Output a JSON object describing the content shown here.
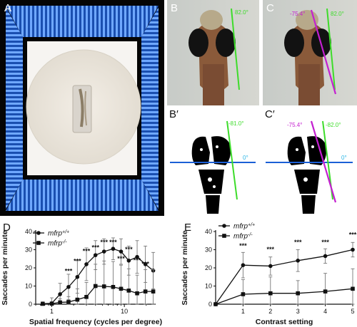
{
  "figure": {
    "panels": {
      "A": {
        "letter": "A"
      },
      "B": {
        "letter": "B",
        "angle": "82.0°"
      },
      "C": {
        "letter": "C",
        "angle_left": "-75.4°",
        "angle_right": "82.0°"
      },
      "Bp": {
        "letter": "B′",
        "angle_line": "-81.0°",
        "angle_horizontal": "0°"
      },
      "Cp": {
        "letter": "C′",
        "angle_left": "-75.4°",
        "angle_right": "-82.0°",
        "angle_horizontal": "0°"
      },
      "D": {
        "letter": "D"
      },
      "E": {
        "letter": "E"
      }
    },
    "colors": {
      "green": "#3ddc2a",
      "magenta": "#c41fd0",
      "blue": "#1b5fd6",
      "cyan": "#2bb6e6"
    }
  },
  "chart_data": [
    {
      "panel": "D",
      "type": "line",
      "xlabel": "Spatial frequency (cycles per degree)",
      "ylabel": "Saccades per minute",
      "xscale": "log",
      "xlim": [
        0.6,
        27
      ],
      "ylim": [
        0,
        40
      ],
      "yticks": [
        0,
        10,
        20,
        30,
        40
      ],
      "xtick_labels": [
        "1",
        "10"
      ],
      "legend": {
        "position": "top-left",
        "entries": [
          "mfrp+/+",
          "mfrp-/-"
        ]
      },
      "x": [
        0.75,
        1.0,
        1.3,
        1.7,
        2.25,
        3.0,
        4.0,
        5.25,
        7.0,
        9.0,
        11.5,
        15.0,
        19.5,
        25.0
      ],
      "series": [
        {
          "name": "mfrp+/+",
          "marker": "circle",
          "values": [
            0.3,
            0.5,
            5.5,
            9.5,
            15,
            22,
            27,
            29,
            30.5,
            29,
            24,
            26,
            22,
            18.5
          ],
          "errors": [
            1,
            3,
            6,
            7,
            9,
            9,
            8,
            7,
            6,
            7,
            8,
            9,
            10,
            10
          ]
        },
        {
          "name": "mfrp-/-",
          "marker": "square",
          "values": [
            0.2,
            0.3,
            1.0,
            1.2,
            2.5,
            4.0,
            10.0,
            9.8,
            9.5,
            8.5,
            7.5,
            6.0,
            7.0,
            7.0
          ],
          "errors": [
            1,
            1,
            2,
            3,
            6,
            8,
            12,
            14,
            14,
            13,
            12,
            10,
            12,
            12
          ]
        }
      ],
      "annotations": [
        {
          "text": "***",
          "x": 1.7,
          "y": 17
        },
        {
          "text": "***",
          "x": 2.25,
          "y": 22.5
        },
        {
          "text": "***",
          "x": 3.0,
          "y": 28
        },
        {
          "text": "***",
          "x": 4.0,
          "y": 30
        },
        {
          "text": "***",
          "x": 5.25,
          "y": 33
        },
        {
          "text": "***",
          "x": 7.0,
          "y": 33
        },
        {
          "text": "***",
          "x": 9.0,
          "y": 24
        },
        {
          "text": "***",
          "x": 11.5,
          "y": 29
        },
        {
          "text": "***",
          "x": 15.0,
          "y": 23
        },
        {
          "text": "***",
          "x": 19.5,
          "y": 21
        }
      ]
    },
    {
      "panel": "E",
      "type": "line",
      "xlabel": "Contrast setting",
      "ylabel": "Saccades per minute",
      "xlim": [
        0,
        5
      ],
      "ylim": [
        0,
        40
      ],
      "yticks": [
        0,
        10,
        20,
        30,
        40
      ],
      "categories": [
        "1",
        "2",
        "3",
        "4",
        "5"
      ],
      "x": [
        0,
        1,
        2,
        3,
        4,
        5
      ],
      "legend": {
        "position": "top-left",
        "entries": [
          "mfrp+/+",
          "mfrp-/-"
        ]
      },
      "series": [
        {
          "name": "mfrp+/+",
          "marker": "circle",
          "values": [
            0,
            21.5,
            21.0,
            24.0,
            26.5,
            30.0
          ],
          "errors": [
            0,
            7,
            5,
            6,
            4,
            4
          ]
        },
        {
          "name": "mfrp-/-",
          "marker": "square",
          "values": [
            0,
            5.5,
            6.0,
            6.0,
            7.0,
            8.5
          ],
          "errors": [
            0,
            8,
            9,
            7,
            10,
            11
          ]
        }
      ],
      "annotations": [
        {
          "text": "***",
          "x": 1,
          "y": 31
        },
        {
          "text": "***",
          "x": 2,
          "y": 29
        },
        {
          "text": "***",
          "x": 3,
          "y": 33
        },
        {
          "text": "***",
          "x": 4,
          "y": 33
        },
        {
          "text": "***",
          "x": 5,
          "y": 37
        }
      ]
    }
  ]
}
